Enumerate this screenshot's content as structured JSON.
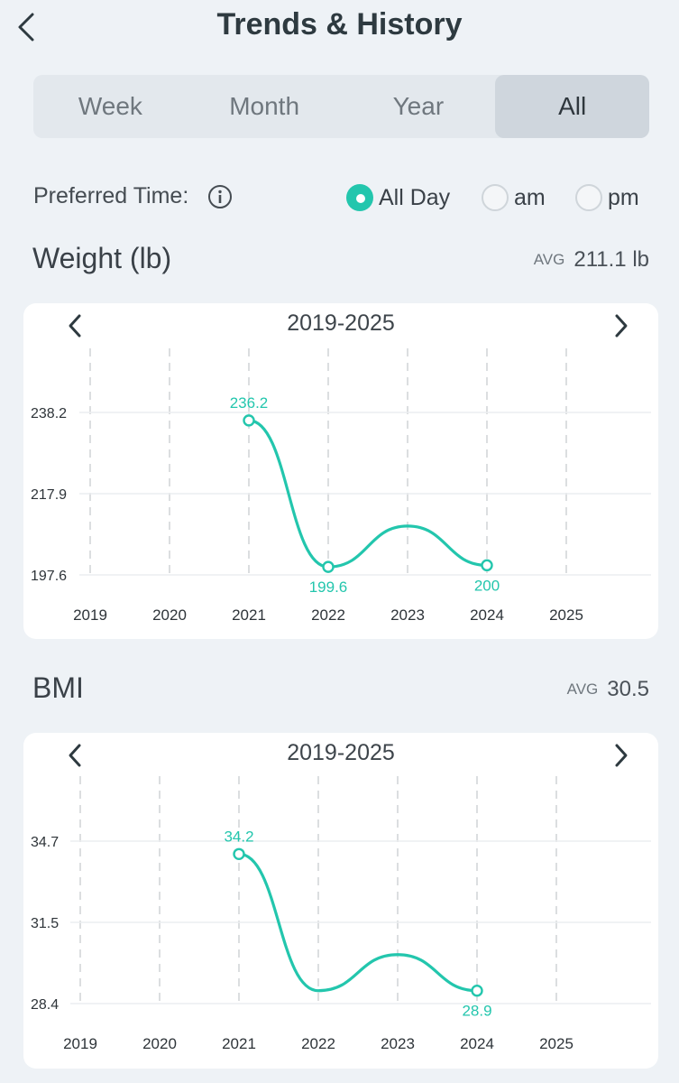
{
  "header": {
    "title": "Trends & History"
  },
  "tabs": [
    {
      "label": "Week",
      "active": false
    },
    {
      "label": "Month",
      "active": false
    },
    {
      "label": "Year",
      "active": false
    },
    {
      "label": "All",
      "active": true
    }
  ],
  "preferred": {
    "label": "Preferred Time:",
    "options": [
      {
        "label": "All Day",
        "selected": true
      },
      {
        "label": "am",
        "selected": false
      },
      {
        "label": "pm",
        "selected": false
      }
    ]
  },
  "colors": {
    "accent": "#23c6ad",
    "grid": "#c8ccd0"
  },
  "weight": {
    "title": "Weight (lb)",
    "avg_label": "AVG",
    "avg_value": "211.1 lb",
    "range": "2019-2025"
  },
  "bmi": {
    "title": "BMI",
    "avg_label": "AVG",
    "avg_value": "30.5",
    "range": "2019-2025"
  },
  "chart_data": [
    {
      "type": "line",
      "name": "weight",
      "title": "",
      "categories": [
        "2019",
        "2020",
        "2021",
        "2022",
        "2023",
        "2024",
        "2025"
      ],
      "yticks": [
        "238.2",
        "217.9",
        "197.6"
      ],
      "ylim": [
        197.6,
        238.2
      ],
      "points": [
        {
          "x": "2021",
          "y": 236.2,
          "label": "236.2"
        },
        {
          "x": "2022",
          "y": 199.6,
          "label": "199.6"
        },
        {
          "x": "2023",
          "y": 209.8,
          "label": ""
        },
        {
          "x": "2024",
          "y": 200.0,
          "label": "200"
        }
      ],
      "markers": [
        "2021",
        "2022",
        "2024"
      ]
    },
    {
      "type": "line",
      "name": "bmi",
      "title": "",
      "categories": [
        "2019",
        "2020",
        "2021",
        "2022",
        "2023",
        "2024",
        "2025"
      ],
      "yticks": [
        "34.7",
        "31.5",
        "28.4"
      ],
      "ylim": [
        28.4,
        34.7
      ],
      "points": [
        {
          "x": "2021",
          "y": 34.2,
          "label": "34.2"
        },
        {
          "x": "2022",
          "y": 28.9,
          "label": ""
        },
        {
          "x": "2023",
          "y": 30.3,
          "label": ""
        },
        {
          "x": "2024",
          "y": 28.9,
          "label": "28.9"
        }
      ],
      "markers": [
        "2021",
        "2024"
      ]
    }
  ]
}
